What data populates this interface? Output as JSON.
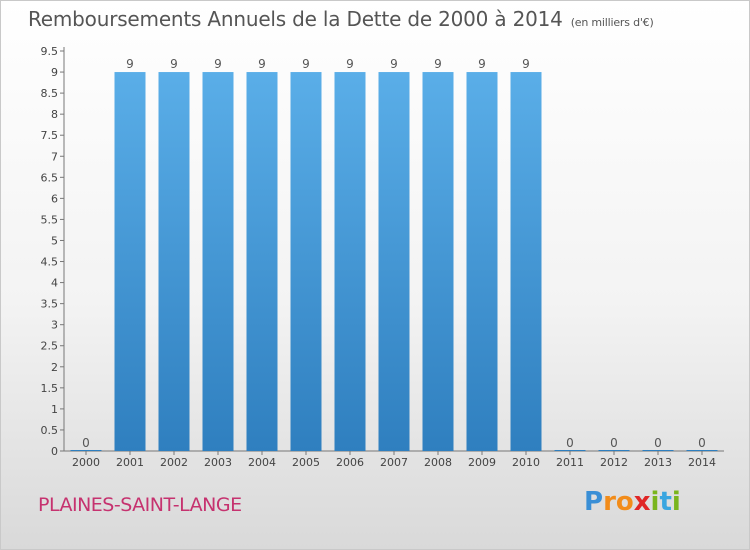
{
  "chart_data": {
    "type": "bar",
    "title": "Remboursements Annuels de la Dette de 2000 à 2014",
    "unit": "(en milliers d'€)",
    "xlabel": "",
    "ylabel": "",
    "categories": [
      "2000",
      "2001",
      "2002",
      "2003",
      "2004",
      "2005",
      "2006",
      "2007",
      "2008",
      "2009",
      "2010",
      "2011",
      "2012",
      "2013",
      "2014"
    ],
    "values": [
      0,
      9,
      9,
      9,
      9,
      9,
      9,
      9,
      9,
      9,
      9,
      0,
      0,
      0,
      0
    ],
    "data_labels": [
      "0",
      "9",
      "9",
      "9",
      "9",
      "9",
      "9",
      "9",
      "9",
      "9",
      "9",
      "0",
      "0",
      "0",
      "0"
    ],
    "yticks": [
      "0",
      "0.5",
      "1",
      "1.5",
      "2",
      "2.5",
      "3",
      "3.5",
      "4",
      "4.5",
      "5",
      "5.5",
      "6",
      "6.5",
      "7",
      "7.5",
      "8",
      "8.5",
      "9",
      "9.5"
    ],
    "ylim": [
      0,
      9.5
    ],
    "grid": false,
    "bar_color_top": "#5aaee8",
    "bar_color_bottom": "#2f7fbf"
  },
  "location": "PLAINES-SAINT-LANGE",
  "logo": {
    "letters": [
      "P",
      "r",
      "o",
      "x",
      "i",
      "t",
      "i"
    ],
    "colors": [
      "#3a8fd6",
      "#f28c1a",
      "#f28c1a",
      "#e02626",
      "#7ab51d",
      "#3aa6e0",
      "#7ab51d"
    ]
  }
}
